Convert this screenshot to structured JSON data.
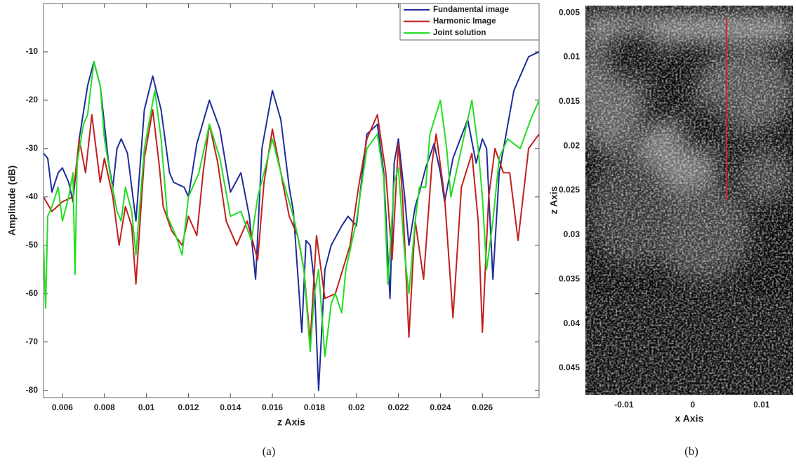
{
  "chart_data": [
    {
      "type": "line",
      "x_label": "z Axis",
      "y_label": "Amplitude (dB)",
      "caption": "(a)",
      "xlim": [
        0.0051,
        0.0287
      ],
      "ylim": [
        -81.5,
        0
      ],
      "xticks": [
        0.006,
        0.008,
        0.01,
        0.012,
        0.014,
        0.016,
        0.018,
        0.02,
        0.022,
        0.024,
        0.026
      ],
      "yticks": [
        -80,
        -70,
        -60,
        -50,
        -40,
        -30,
        -20,
        -10
      ],
      "legend": "upper right",
      "series": [
        {
          "name": "Fundamental image",
          "color": "#1f2d9a",
          "x": [
            0.0051,
            0.0053,
            0.0055,
            0.0058,
            0.006,
            0.0063,
            0.0065,
            0.0068,
            0.0072,
            0.0075,
            0.0078,
            0.0082,
            0.0084,
            0.0086,
            0.0088,
            0.0091,
            0.0095,
            0.0099,
            0.0103,
            0.0107,
            0.0111,
            0.0113,
            0.0118,
            0.012,
            0.0124,
            0.013,
            0.0135,
            0.014,
            0.0145,
            0.0149,
            0.0152,
            0.0155,
            0.016,
            0.0164,
            0.0168,
            0.017,
            0.0174,
            0.0176,
            0.0178,
            0.018,
            0.0182,
            0.0185,
            0.0188,
            0.0193,
            0.0196,
            0.02,
            0.0205,
            0.021,
            0.0213,
            0.0216,
            0.0218,
            0.022,
            0.0223,
            0.0225,
            0.0228,
            0.023,
            0.0233,
            0.0237,
            0.024,
            0.0242,
            0.0246,
            0.0253,
            0.0257,
            0.026,
            0.0262,
            0.0265,
            0.0268,
            0.0275,
            0.0282,
            0.0287
          ],
          "values": [
            -31,
            -32,
            -39,
            -35,
            -34,
            -37,
            -41,
            -28,
            -17,
            -12,
            -17,
            -33,
            -38,
            -30,
            -28,
            -31,
            -45,
            -22,
            -15,
            -22,
            -35,
            -37,
            -38,
            -40,
            -29,
            -20,
            -26,
            -39,
            -35,
            -44,
            -57,
            -30,
            -18,
            -24,
            -38,
            -43,
            -68,
            -49,
            -50,
            -58,
            -80,
            -55,
            -50,
            -46,
            -44,
            -46,
            -27,
            -25,
            -35,
            -61,
            -33,
            -28,
            -40,
            -50,
            -42,
            -39,
            -34,
            -29,
            -35,
            -41,
            -32,
            -24,
            -33,
            -28,
            -30,
            -57,
            -35,
            -18,
            -11,
            -10
          ]
        },
        {
          "name": "Harmonic Image",
          "color": "#c0201e",
          "x": [
            0.0051,
            0.0055,
            0.006,
            0.0065,
            0.0068,
            0.0071,
            0.0074,
            0.0078,
            0.008,
            0.0084,
            0.0087,
            0.009,
            0.0093,
            0.0095,
            0.0099,
            0.0103,
            0.0106,
            0.0108,
            0.0112,
            0.0117,
            0.012,
            0.0124,
            0.0127,
            0.013,
            0.0134,
            0.0138,
            0.0143,
            0.0148,
            0.0153,
            0.0156,
            0.016,
            0.0164,
            0.0168,
            0.0172,
            0.0175,
            0.0178,
            0.0181,
            0.0185,
            0.019,
            0.0197,
            0.0201,
            0.0205,
            0.021,
            0.0214,
            0.0217,
            0.022,
            0.0222,
            0.0225,
            0.0228,
            0.0232,
            0.0236,
            0.0238,
            0.0242,
            0.0246,
            0.025,
            0.0255,
            0.0258,
            0.026,
            0.0263,
            0.0266,
            0.027,
            0.0273,
            0.0277,
            0.0282,
            0.0287
          ],
          "values": [
            -40,
            -43,
            -41,
            -40,
            -28,
            -35,
            -23,
            -37,
            -32,
            -40,
            -50,
            -42,
            -46,
            -58,
            -32,
            -22,
            -33,
            -42,
            -47,
            -50,
            -44,
            -48,
            -35,
            -25,
            -33,
            -45,
            -50,
            -45,
            -53,
            -37,
            -26,
            -35,
            -44,
            -48,
            -55,
            -70,
            -48,
            -61,
            -60,
            -50,
            -38,
            -28,
            -23,
            -35,
            -53,
            -29,
            -40,
            -69,
            -45,
            -57,
            -33,
            -27,
            -40,
            -65,
            -38,
            -31,
            -45,
            -68,
            -40,
            -30,
            -35,
            -35,
            -49,
            -30,
            -27
          ]
        },
        {
          "name": "Joint solution",
          "color": "#22dd22",
          "x": [
            0.0051,
            0.0052,
            0.0053,
            0.0055,
            0.0058,
            0.006,
            0.0063,
            0.0065,
            0.0066,
            0.0067,
            0.007,
            0.0072,
            0.0075,
            0.0078,
            0.008,
            0.0083,
            0.0086,
            0.0088,
            0.009,
            0.0093,
            0.0095,
            0.0099,
            0.0104,
            0.0107,
            0.011,
            0.0114,
            0.0117,
            0.012,
            0.0125,
            0.013,
            0.0135,
            0.014,
            0.0145,
            0.015,
            0.0153,
            0.0156,
            0.016,
            0.0164,
            0.017,
            0.0173,
            0.0175,
            0.0178,
            0.018,
            0.0182,
            0.0185,
            0.0188,
            0.019,
            0.0193,
            0.0195,
            0.02,
            0.0205,
            0.021,
            0.0213,
            0.0215,
            0.0218,
            0.022,
            0.0223,
            0.0225,
            0.0228,
            0.023,
            0.0233,
            0.0235,
            0.024,
            0.0243,
            0.0245,
            0.025,
            0.0255,
            0.0258,
            0.026,
            0.0262,
            0.0265,
            0.0268,
            0.0272,
            0.0278,
            0.0283,
            0.0287
          ],
          "values": [
            -50,
            -63,
            -44,
            -42,
            -38,
            -45,
            -40,
            -35,
            -56,
            -33,
            -25,
            -23,
            -12,
            -17,
            -28,
            -36,
            -43,
            -45,
            -38,
            -43,
            -52,
            -30,
            -18,
            -28,
            -44,
            -48,
            -52,
            -40,
            -35,
            -25,
            -32,
            -44,
            -43,
            -49,
            -40,
            -35,
            -28,
            -35,
            -44,
            -50,
            -55,
            -72,
            -60,
            -55,
            -73,
            -62,
            -60,
            -64,
            -55,
            -45,
            -30,
            -27,
            -36,
            -58,
            -37,
            -34,
            -52,
            -60,
            -45,
            -38,
            -38,
            -27,
            -20,
            -30,
            -40,
            -30,
            -20,
            -30,
            -40,
            -55,
            -45,
            -32,
            -28,
            -30,
            -24,
            -20
          ]
        }
      ]
    },
    {
      "type": "image",
      "x_label": "x Axis",
      "y_label": "z Axis",
      "caption": "(b)",
      "xlim": [
        -0.0156,
        0.0146
      ],
      "ylim": [
        0.0042,
        0.048
      ],
      "y_reversed": true,
      "xticks": [
        -0.01,
        0,
        0.01
      ],
      "yticks": [
        0.005,
        0.01,
        0.015,
        0.02,
        0.025,
        0.03,
        0.035,
        0.04,
        0.045
      ],
      "lines": [
        {
          "color": "#e02020",
          "x": [
            0.0049,
            0.0049
          ],
          "values": [
            0.0056,
            0.0261
          ]
        }
      ]
    }
  ]
}
